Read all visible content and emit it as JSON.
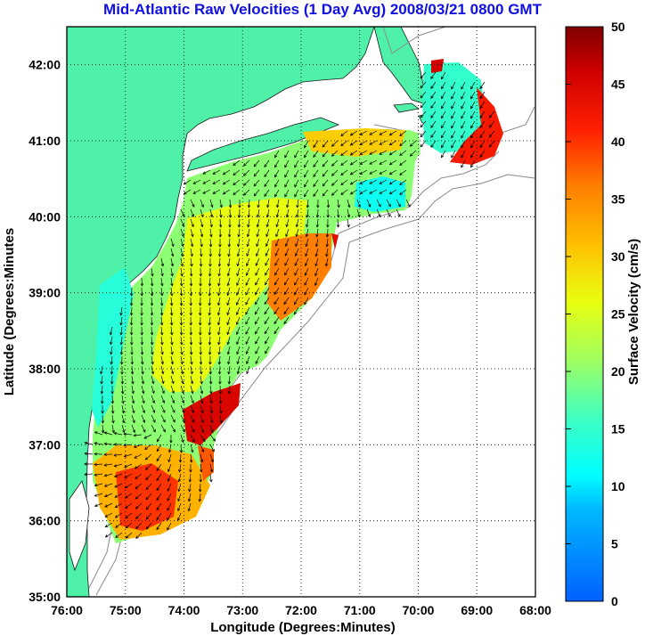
{
  "title": "Mid-Atlantic Raw Velocities (1 Day Avg) 2008/03/21 0800 GMT",
  "map": {
    "xlabel": "Longitude (Degrees:Minutes)",
    "ylabel": "Latitude (Degrees:Minutes",
    "xlim": [
      -76,
      -68
    ],
    "ylim": [
      35,
      42.5
    ],
    "xticks": [
      {
        "value": -76,
        "label": "76:00"
      },
      {
        "value": -75,
        "label": "75:00"
      },
      {
        "value": -74,
        "label": "74:00"
      },
      {
        "value": -73,
        "label": "73:00"
      },
      {
        "value": -72,
        "label": "72:00"
      },
      {
        "value": -71,
        "label": "71:00"
      },
      {
        "value": -70,
        "label": "70:00"
      },
      {
        "value": -69,
        "label": "69:00"
      },
      {
        "value": -68,
        "label": "68:00"
      }
    ],
    "yticks": [
      {
        "value": 35,
        "label": "35:00"
      },
      {
        "value": 36,
        "label": "36:00"
      },
      {
        "value": 37,
        "label": "37:00"
      },
      {
        "value": 38,
        "label": "38:00"
      },
      {
        "value": 39,
        "label": "39:00"
      },
      {
        "value": 40,
        "label": "40:00"
      },
      {
        "value": 41,
        "label": "41:00"
      },
      {
        "value": 42,
        "label": "42:00"
      }
    ],
    "grid": "dotted",
    "land_color": "#4ff0a8",
    "arrow_color": "#000000"
  },
  "colorbar": {
    "label": "Surface Velocity (cm/s)",
    "min": 0,
    "max": 50,
    "ticks": [
      {
        "value": 0,
        "label": "0"
      },
      {
        "value": 5,
        "label": "5"
      },
      {
        "value": 10,
        "label": "10"
      },
      {
        "value": 15,
        "label": "15"
      },
      {
        "value": 20,
        "label": "20"
      },
      {
        "value": 25,
        "label": "25"
      },
      {
        "value": 30,
        "label": "30"
      },
      {
        "value": 35,
        "label": "35"
      },
      {
        "value": 40,
        "label": "40"
      },
      {
        "value": 45,
        "label": "45"
      },
      {
        "value": 50,
        "label": "50"
      }
    ],
    "colormap": "jet"
  }
}
